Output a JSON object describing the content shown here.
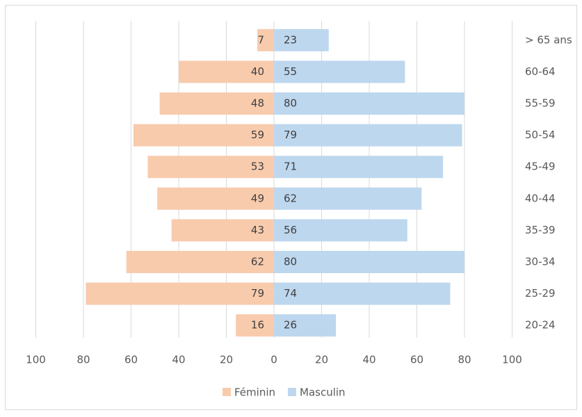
{
  "chart_data": {
    "type": "bar",
    "orientation": "horizontal",
    "stacked": false,
    "categories": [
      "> 65 ans",
      "60-64",
      "55-59",
      "50-54",
      "45-49",
      "40-44",
      "35-39",
      "30-34",
      "25-29",
      "20-24"
    ],
    "series": [
      {
        "name": "Féminin",
        "color": "#f8cbad",
        "values": [
          -7,
          -40,
          -48,
          -59,
          -53,
          -49,
          -43,
          -62,
          -79,
          -16
        ],
        "value_labels": [
          "7",
          "40",
          "48",
          "59",
          "53",
          "49",
          "43",
          "62",
          "79",
          "16"
        ]
      },
      {
        "name": "Masculin",
        "color": "#bdd7ee",
        "values": [
          23,
          55,
          80,
          79,
          71,
          62,
          56,
          80,
          74,
          26
        ]
      }
    ],
    "xlim": [
      -100,
      100
    ],
    "xticks": [
      {
        "value": -100,
        "label": "100"
      },
      {
        "value": -80,
        "label": "80"
      },
      {
        "value": -60,
        "label": "60"
      },
      {
        "value": -40,
        "label": "40"
      },
      {
        "value": -20,
        "label": "20"
      },
      0,
      20,
      40,
      60,
      80,
      100
    ],
    "grid": true,
    "legend": "bottom"
  }
}
